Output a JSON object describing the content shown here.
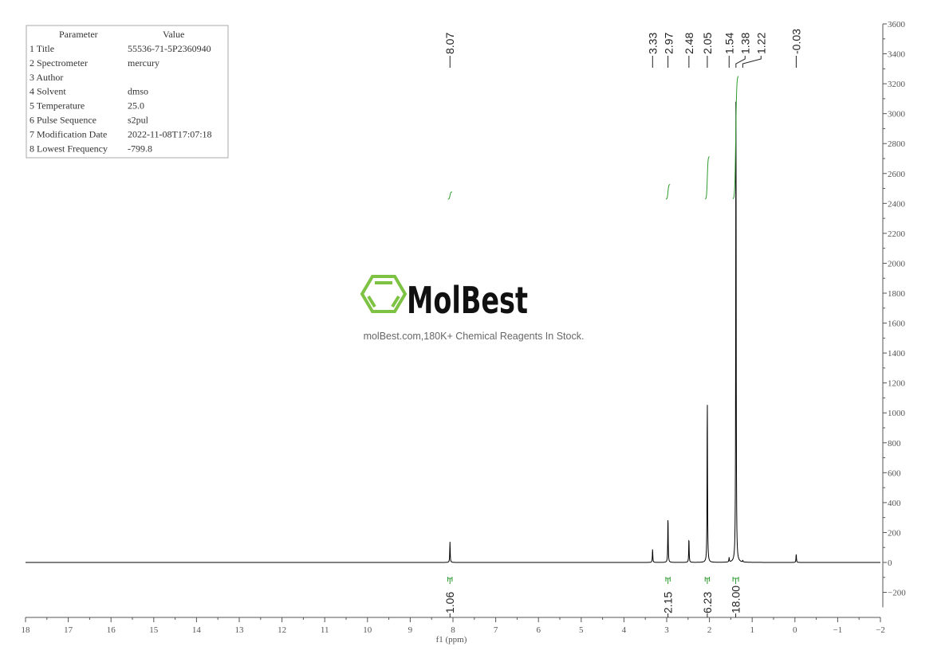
{
  "parameters_table": {
    "headers": [
      "Parameter",
      "Value"
    ],
    "rows": [
      [
        "1 Title",
        "55536-71-5P2360940"
      ],
      [
        "2 Spectrometer",
        "mercury"
      ],
      [
        "3 Author",
        ""
      ],
      [
        "4 Solvent",
        "dmso"
      ],
      [
        "5 Temperature",
        "25.0"
      ],
      [
        "6 Pulse Sequence",
        "s2pul"
      ],
      [
        "7 Modification Date",
        "2022-11-08T17:07:18"
      ],
      [
        "8 Lowest Frequency",
        "-799.8"
      ]
    ]
  },
  "watermark": {
    "logo": "MolBest",
    "tagline": "molBest.com,180K+ Chemical Reagents In Stock."
  },
  "chart_data": {
    "type": "line",
    "xlabel": "f1 (ppm)",
    "ylabel": "",
    "xlim": [
      18,
      -2
    ],
    "ylim": [
      -300,
      3600
    ],
    "x_ticks": [
      18,
      17,
      16,
      15,
      14,
      13,
      12,
      11,
      10,
      9,
      8,
      7,
      6,
      5,
      4,
      3,
      2,
      1,
      0,
      -1,
      -2
    ],
    "y_ticks": [
      -200,
      0,
      200,
      400,
      600,
      800,
      1000,
      1200,
      1400,
      1600,
      1800,
      2000,
      2200,
      2400,
      2600,
      2800,
      3000,
      3200,
      3400,
      3600
    ],
    "grid": false,
    "line_color": "#000000",
    "integral_color": "#2e9b2e",
    "peaks": [
      {
        "ppm": 8.07,
        "height": 138,
        "label": "8.07"
      },
      {
        "ppm": 3.33,
        "height": 90,
        "label": "3.33"
      },
      {
        "ppm": 2.97,
        "height": 314,
        "label": "2.97"
      },
      {
        "ppm": 2.48,
        "height": 165,
        "label": "2.48"
      },
      {
        "ppm": 2.05,
        "height": 1118,
        "label": "2.05"
      },
      {
        "ppm": 1.54,
        "height": 30,
        "label": "1.54"
      },
      {
        "ppm": 1.38,
        "height": 3280,
        "label": "1.38"
      },
      {
        "ppm": 1.22,
        "height": 10,
        "label": "1.22"
      },
      {
        "ppm": -0.03,
        "height": 58,
        "label": "-0.03"
      }
    ],
    "integrals": [
      {
        "from": 8.12,
        "to": 8.02,
        "value": 1.06,
        "label": "1.06"
      },
      {
        "from": 3.02,
        "to": 2.92,
        "value": 2.15,
        "label": "2.15"
      },
      {
        "from": 2.1,
        "to": 2.0,
        "value": 6.23,
        "label": "6.23"
      },
      {
        "from": 1.45,
        "to": 1.32,
        "value": 18.0,
        "label": "18.00"
      }
    ]
  }
}
